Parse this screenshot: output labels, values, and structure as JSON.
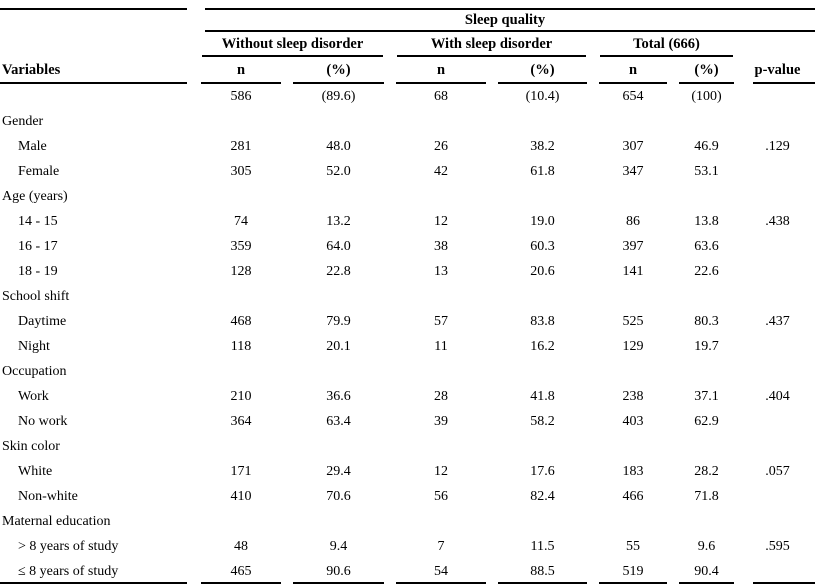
{
  "page": {
    "background_color": "#ffffff",
    "text_color": "#000000",
    "rule_color": "#000000"
  },
  "table": {
    "span_header": "Sleep quality",
    "variables_header": "Variables",
    "pvalue_header": "p-value",
    "groups": [
      {
        "label": "Without sleep disorder"
      },
      {
        "label": "With sleep disorder"
      },
      {
        "label": "Total (666)"
      }
    ],
    "sub_headers": [
      "n",
      "(%)",
      "n",
      "(%)",
      "n",
      "(%)"
    ],
    "rows": [
      {
        "type": "data",
        "label": "",
        "values": [
          "586",
          "(89.6)",
          "68",
          "(10.4)",
          "654",
          "(100)"
        ],
        "p": ""
      },
      {
        "type": "group",
        "label": "Gender"
      },
      {
        "type": "data",
        "label": "Male",
        "values": [
          "281",
          "48.0",
          "26",
          "38.2",
          "307",
          "46.9"
        ],
        "p": ".129"
      },
      {
        "type": "data",
        "label": "Female",
        "values": [
          "305",
          "52.0",
          "42",
          "61.8",
          "347",
          "53.1"
        ],
        "p": ""
      },
      {
        "type": "group",
        "label": "Age (years)"
      },
      {
        "type": "data",
        "label": "14 - 15",
        "values": [
          "74",
          "13.2",
          "12",
          "19.0",
          "86",
          "13.8"
        ],
        "p": ".438"
      },
      {
        "type": "data",
        "label": "16 - 17",
        "values": [
          "359",
          "64.0",
          "38",
          "60.3",
          "397",
          "63.6"
        ],
        "p": ""
      },
      {
        "type": "data",
        "label": "18 - 19",
        "values": [
          "128",
          "22.8",
          "13",
          "20.6",
          "141",
          "22.6"
        ],
        "p": ""
      },
      {
        "type": "group",
        "label": "School shift"
      },
      {
        "type": "data",
        "label": "Daytime",
        "values": [
          "468",
          "79.9",
          "57",
          "83.8",
          "525",
          "80.3"
        ],
        "p": ".437"
      },
      {
        "type": "data",
        "label": "Night",
        "values": [
          "118",
          "20.1",
          "11",
          "16.2",
          "129",
          "19.7"
        ],
        "p": ""
      },
      {
        "type": "group",
        "label": "Occupation"
      },
      {
        "type": "data",
        "label": "Work",
        "values": [
          "210",
          "36.6",
          "28",
          "41.8",
          "238",
          "37.1"
        ],
        "p": ".404"
      },
      {
        "type": "data",
        "label": "No work",
        "values": [
          "364",
          "63.4",
          "39",
          "58.2",
          "403",
          "62.9"
        ],
        "p": ""
      },
      {
        "type": "group",
        "label": "Skin color"
      },
      {
        "type": "data",
        "label": "White",
        "values": [
          "171",
          "29.4",
          "12",
          "17.6",
          "183",
          "28.2"
        ],
        "p": ".057"
      },
      {
        "type": "data",
        "label": "Non-white",
        "values": [
          "410",
          "70.6",
          "56",
          "82.4",
          "466",
          "71.8"
        ],
        "p": ""
      },
      {
        "type": "group",
        "label": "Maternal education"
      },
      {
        "type": "data",
        "label": "> 8 years of study",
        "values": [
          "48",
          "9.4",
          "7",
          "11.5",
          "55",
          "9.6"
        ],
        "p": ".595"
      },
      {
        "type": "data",
        "label": "≤ 8 years of study",
        "values": [
          "465",
          "90.6",
          "54",
          "88.5",
          "519",
          "90.4"
        ],
        "p": ""
      }
    ]
  }
}
